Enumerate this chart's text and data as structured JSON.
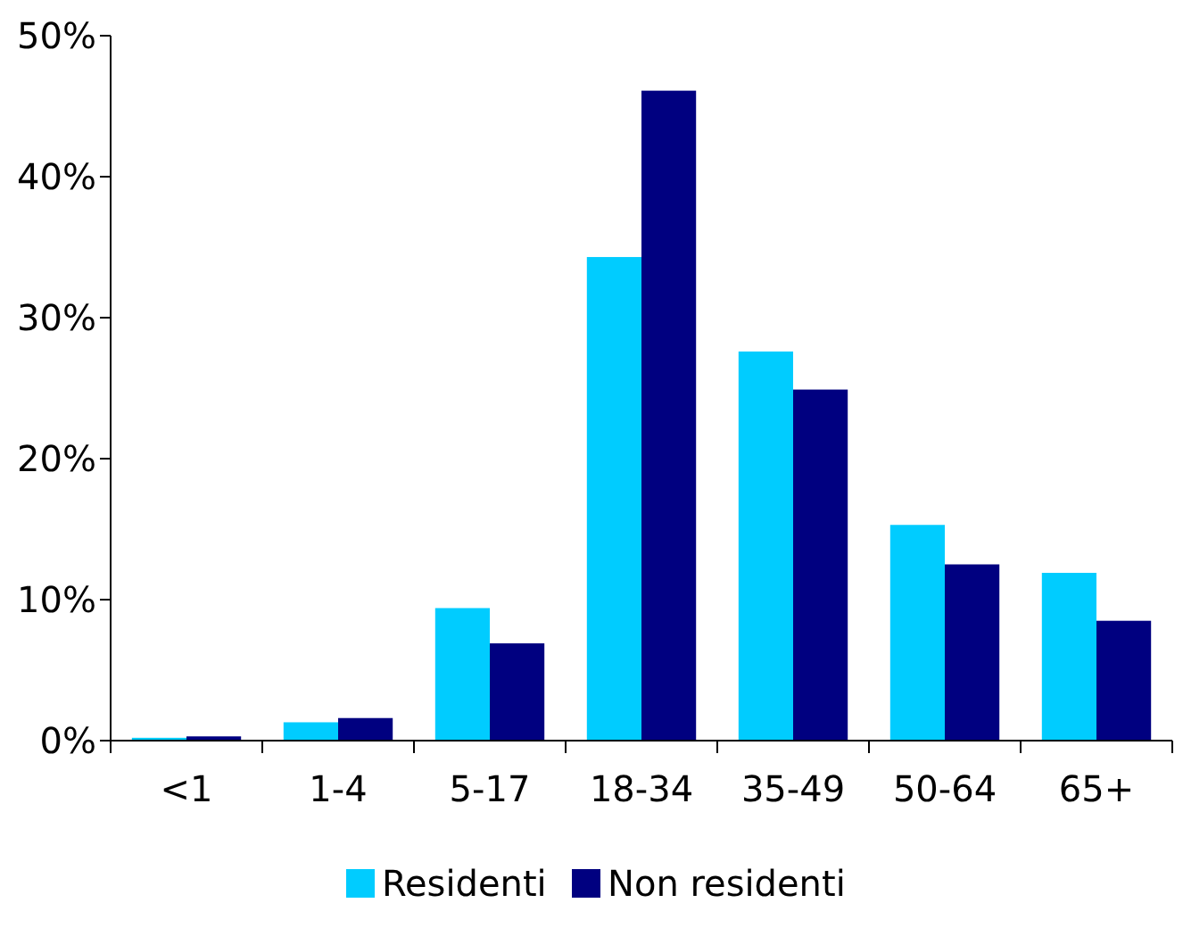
{
  "chart_data": {
    "type": "bar",
    "categories": [
      "<1",
      "1-4",
      "5-17",
      "18-34",
      "35-49",
      "50-64",
      "65+"
    ],
    "series": [
      {
        "name": "Residenti",
        "color": "#00ccff",
        "values": [
          0.2,
          1.3,
          9.4,
          34.3,
          27.6,
          15.3,
          11.9
        ]
      },
      {
        "name": "Non residenti",
        "color": "#000080",
        "values": [
          0.3,
          1.6,
          6.9,
          46.1,
          24.9,
          12.5,
          8.5
        ]
      }
    ],
    "ylim": [
      0,
      50
    ],
    "yticks": [
      {
        "value": 0,
        "label": "0%"
      },
      {
        "value": 10,
        "label": "10%"
      },
      {
        "value": 20,
        "label": "20%"
      },
      {
        "value": 30,
        "label": "30%"
      },
      {
        "value": 40,
        "label": "40%"
      },
      {
        "value": 50,
        "label": "50%"
      }
    ],
    "grid": false,
    "legend": "bottom"
  }
}
